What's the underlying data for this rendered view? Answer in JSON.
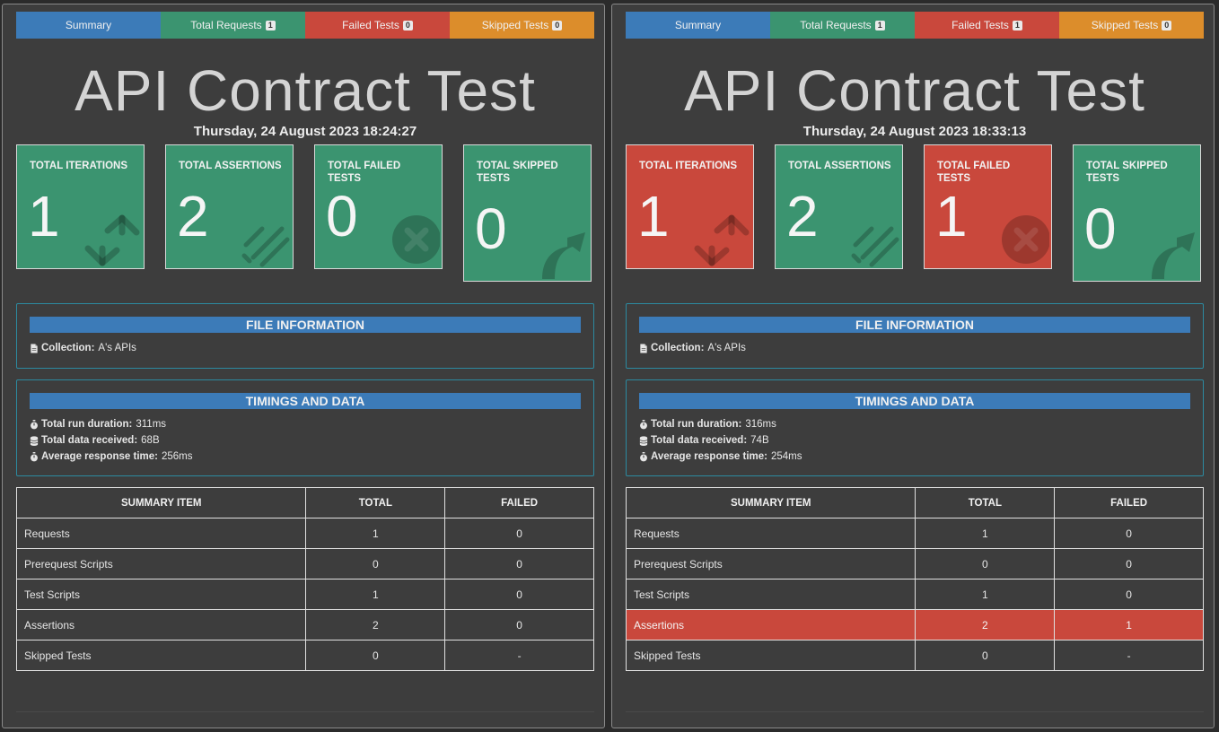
{
  "colors": {
    "summary_tab": "#3c7bb8",
    "requests_tab": "#3b9470",
    "failed_tab": "#c9483c",
    "skipped_tab": "#dc8d2b",
    "success": "#3b9470",
    "failure": "#c9483c",
    "border_accent": "#2c8aa0"
  },
  "reports": [
    {
      "tabs": [
        {
          "label": "Summary",
          "badge": ""
        },
        {
          "label": "Total Requests",
          "badge": "1"
        },
        {
          "label": "Failed Tests",
          "badge": "0"
        },
        {
          "label": "Skipped Tests",
          "badge": "0"
        }
      ],
      "title": "API Contract Test",
      "datetime": "Thursday, 24 August 2023 18:24:27",
      "cards": [
        {
          "label": "TOTAL ITERATIONS",
          "value": "1",
          "status": "green",
          "icon": "refresh-icon"
        },
        {
          "label": "TOTAL ASSERTIONS",
          "value": "2",
          "status": "green",
          "icon": "tasks-icon"
        },
        {
          "label": "TOTAL FAILED TESTS",
          "value": "0",
          "status": "green",
          "icon": "times-circle-icon"
        },
        {
          "label": "TOTAL SKIPPED TESTS",
          "value": "0",
          "status": "green",
          "icon": "share-arrow-icon"
        }
      ],
      "file_info": {
        "heading": "FILE INFORMATION",
        "collection_label": "Collection:",
        "collection_value": "A's APIs"
      },
      "timings": {
        "heading": "TIMINGS AND DATA",
        "duration_label": "Total run duration:",
        "duration_value": "311ms",
        "data_label": "Total data received:",
        "data_value": "68B",
        "avg_label": "Average response time:",
        "avg_value": "256ms"
      },
      "table": {
        "headers": [
          "SUMMARY ITEM",
          "TOTAL",
          "FAILED"
        ],
        "rows": [
          {
            "item": "Requests",
            "total": "1",
            "failed": "0"
          },
          {
            "item": "Prerequest Scripts",
            "total": "0",
            "failed": "0"
          },
          {
            "item": "Test Scripts",
            "total": "1",
            "failed": "0"
          },
          {
            "item": "Assertions",
            "total": "2",
            "failed": "0"
          },
          {
            "item": "Skipped Tests",
            "total": "0",
            "failed": "-"
          }
        ]
      }
    },
    {
      "tabs": [
        {
          "label": "Summary",
          "badge": ""
        },
        {
          "label": "Total Requests",
          "badge": "1"
        },
        {
          "label": "Failed Tests",
          "badge": "1"
        },
        {
          "label": "Skipped Tests",
          "badge": "0"
        }
      ],
      "title": "API Contract Test",
      "datetime": "Thursday, 24 August 2023 18:33:13",
      "cards": [
        {
          "label": "TOTAL ITERATIONS",
          "value": "1",
          "status": "red",
          "icon": "refresh-icon"
        },
        {
          "label": "TOTAL ASSERTIONS",
          "value": "2",
          "status": "green",
          "icon": "tasks-icon"
        },
        {
          "label": "TOTAL FAILED TESTS",
          "value": "1",
          "status": "red",
          "icon": "times-circle-icon"
        },
        {
          "label": "TOTAL SKIPPED TESTS",
          "value": "0",
          "status": "green",
          "icon": "share-arrow-icon"
        }
      ],
      "file_info": {
        "heading": "FILE INFORMATION",
        "collection_label": "Collection:",
        "collection_value": "A's APIs"
      },
      "timings": {
        "heading": "TIMINGS AND DATA",
        "duration_label": "Total run duration:",
        "duration_value": "316ms",
        "data_label": "Total data received:",
        "data_value": "74B",
        "avg_label": "Average response time:",
        "avg_value": "254ms"
      },
      "table": {
        "headers": [
          "SUMMARY ITEM",
          "TOTAL",
          "FAILED"
        ],
        "rows": [
          {
            "item": "Requests",
            "total": "1",
            "failed": "0"
          },
          {
            "item": "Prerequest Scripts",
            "total": "0",
            "failed": "0"
          },
          {
            "item": "Test Scripts",
            "total": "1",
            "failed": "0"
          },
          {
            "item": "Assertions",
            "total": "2",
            "failed": "1",
            "highlight": "failed"
          },
          {
            "item": "Skipped Tests",
            "total": "0",
            "failed": "-"
          }
        ]
      }
    }
  ]
}
